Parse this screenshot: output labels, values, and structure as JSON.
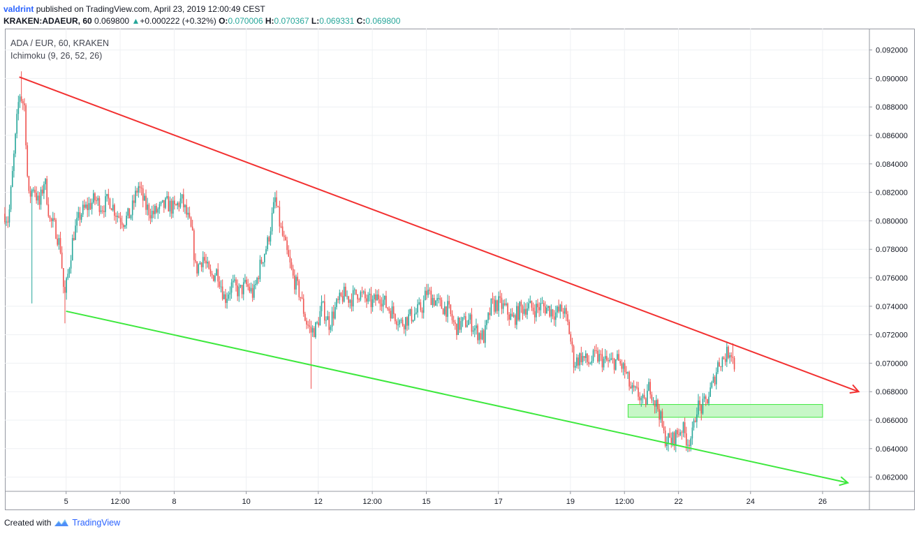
{
  "header": {
    "author": "valdrint",
    "published_text": "published on TradingView.com, April 23, 2019 12:00:49 CEST"
  },
  "ticker": {
    "symbol": "KRAKEN:ADAEUR, 60",
    "last": "0.069800",
    "change_arrow": "▲",
    "change": "+0.000222 (+0.32%)",
    "open_label": "O:",
    "open": "0.070006",
    "high_label": "H:",
    "high": "0.070367",
    "low_label": "L:",
    "low": "0.069331",
    "close_label": "C:",
    "close": "0.069800"
  },
  "legend": {
    "pair": "ADA / EUR, 60, KRAKEN",
    "indicator": "Ichimoku (9, 26, 52, 26)"
  },
  "footer": {
    "created_with": "Created with",
    "brand": "TradingView"
  },
  "colors": {
    "up": "#26a69a",
    "down": "#ef5350",
    "upper_trendline": "#f23030",
    "lower_trendline": "#3de83d",
    "support_zone_fill": "#b9f5b9",
    "support_zone_border": "#3de83d",
    "grid": "#eef0f3"
  },
  "chart_data": {
    "type": "candlestick",
    "y_axis": {
      "range": [
        0.061,
        0.0935
      ],
      "ticks": [
        "0.092000",
        "0.090000",
        "0.088000",
        "0.086000",
        "0.084000",
        "0.082000",
        "0.080000",
        "0.078000",
        "0.076000",
        "0.074000",
        "0.072000",
        "0.070000",
        "0.068000",
        "0.066000",
        "0.064000",
        "0.062000"
      ],
      "position": "right"
    },
    "x_axis": {
      "range_days": [
        3.3,
        27.3
      ],
      "ticks": [
        {
          "label": "5",
          "day": 5.0
        },
        {
          "label": "12:00",
          "day": 6.5
        },
        {
          "label": "8",
          "day": 8.0
        },
        {
          "label": "10",
          "day": 10.0
        },
        {
          "label": "12",
          "day": 12.0
        },
        {
          "label": "12:00",
          "day": 13.5
        },
        {
          "label": "15",
          "day": 15.0
        },
        {
          "label": "17",
          "day": 17.0
        },
        {
          "label": "19",
          "day": 19.0
        },
        {
          "label": "12:00",
          "day": 20.5
        },
        {
          "label": "22",
          "day": 22.0
        },
        {
          "label": "24",
          "day": 24.0
        },
        {
          "label": "26",
          "day": 26.0
        }
      ]
    },
    "grid": true,
    "price_path": [
      [
        3.3,
        0.0805
      ],
      [
        3.4,
        0.08
      ],
      [
        3.55,
        0.0845
      ],
      [
        3.7,
        0.089
      ],
      [
        3.85,
        0.088
      ],
      [
        3.95,
        0.0815
      ],
      [
        4.1,
        0.0825
      ],
      [
        4.25,
        0.081
      ],
      [
        4.4,
        0.083
      ],
      [
        4.55,
        0.08
      ],
      [
        4.7,
        0.0795
      ],
      [
        4.85,
        0.078
      ],
      [
        4.95,
        0.0745
      ],
      [
        5.05,
        0.0762
      ],
      [
        5.2,
        0.079
      ],
      [
        5.4,
        0.0805
      ],
      [
        5.6,
        0.081
      ],
      [
        5.8,
        0.0815
      ],
      [
        6.0,
        0.081
      ],
      [
        6.2,
        0.0815
      ],
      [
        6.4,
        0.0805
      ],
      [
        6.6,
        0.08
      ],
      [
        6.8,
        0.0805
      ],
      [
        7.0,
        0.0825
      ],
      [
        7.2,
        0.081
      ],
      [
        7.4,
        0.0805
      ],
      [
        7.6,
        0.0808
      ],
      [
        7.8,
        0.0812
      ],
      [
        8.0,
        0.0808
      ],
      [
        8.2,
        0.0815
      ],
      [
        8.4,
        0.08
      ],
      [
        8.5,
        0.079
      ],
      [
        8.6,
        0.0765
      ],
      [
        8.8,
        0.0775
      ],
      [
        9.0,
        0.076
      ],
      [
        9.2,
        0.0765
      ],
      [
        9.4,
        0.0745
      ],
      [
        9.6,
        0.0755
      ],
      [
        9.8,
        0.075
      ],
      [
        10.0,
        0.0755
      ],
      [
        10.2,
        0.0748
      ],
      [
        10.4,
        0.077
      ],
      [
        10.6,
        0.0785
      ],
      [
        10.8,
        0.0815
      ],
      [
        10.95,
        0.0795
      ],
      [
        11.1,
        0.078
      ],
      [
        11.3,
        0.076
      ],
      [
        11.5,
        0.0748
      ],
      [
        11.65,
        0.073
      ],
      [
        11.8,
        0.0722
      ],
      [
        11.95,
        0.0725
      ],
      [
        12.1,
        0.074
      ],
      [
        12.3,
        0.0728
      ],
      [
        12.5,
        0.074
      ],
      [
        12.7,
        0.0748
      ],
      [
        12.9,
        0.0745
      ],
      [
        13.1,
        0.075
      ],
      [
        13.3,
        0.0745
      ],
      [
        13.5,
        0.0742
      ],
      [
        13.7,
        0.0748
      ],
      [
        13.9,
        0.074
      ],
      [
        14.1,
        0.0735
      ],
      [
        14.3,
        0.0728
      ],
      [
        14.5,
        0.0732
      ],
      [
        14.7,
        0.0735
      ],
      [
        14.9,
        0.074
      ],
      [
        15.0,
        0.075
      ],
      [
        15.2,
        0.0745
      ],
      [
        15.4,
        0.074
      ],
      [
        15.6,
        0.0738
      ],
      [
        15.8,
        0.0725
      ],
      [
        16.0,
        0.0728
      ],
      [
        16.2,
        0.073
      ],
      [
        16.4,
        0.0722
      ],
      [
        16.6,
        0.0718
      ],
      [
        16.8,
        0.074
      ],
      [
        17.0,
        0.0742
      ],
      [
        17.2,
        0.0738
      ],
      [
        17.4,
        0.073
      ],
      [
        17.6,
        0.0738
      ],
      [
        17.8,
        0.074
      ],
      [
        18.0,
        0.0738
      ],
      [
        18.2,
        0.074
      ],
      [
        18.4,
        0.0738
      ],
      [
        18.6,
        0.0735
      ],
      [
        18.8,
        0.0738
      ],
      [
        18.95,
        0.0725
      ],
      [
        19.1,
        0.07
      ],
      [
        19.3,
        0.0705
      ],
      [
        19.5,
        0.07
      ],
      [
        19.7,
        0.0705
      ],
      [
        19.9,
        0.0702
      ],
      [
        20.1,
        0.07
      ],
      [
        20.3,
        0.0702
      ],
      [
        20.5,
        0.0695
      ],
      [
        20.7,
        0.068
      ],
      [
        20.9,
        0.0678
      ],
      [
        21.05,
        0.067
      ],
      [
        21.2,
        0.0685
      ],
      [
        21.35,
        0.0672
      ],
      [
        21.45,
        0.0668
      ],
      [
        21.6,
        0.0648
      ],
      [
        21.8,
        0.0645
      ],
      [
        21.95,
        0.065
      ],
      [
        22.1,
        0.0655
      ],
      [
        22.25,
        0.0645
      ],
      [
        22.4,
        0.065
      ],
      [
        22.5,
        0.067
      ],
      [
        22.65,
        0.0668
      ],
      [
        22.8,
        0.0675
      ],
      [
        22.95,
        0.0685
      ],
      [
        23.1,
        0.07
      ],
      [
        23.3,
        0.0705
      ],
      [
        23.45,
        0.071
      ],
      [
        23.55,
        0.0698
      ]
    ],
    "wick_spikes": [
      {
        "day": 3.75,
        "high": 0.0905
      },
      {
        "day": 4.05,
        "low": 0.0742
      },
      {
        "day": 4.95,
        "low": 0.0728
      },
      {
        "day": 11.8,
        "low": 0.0682
      },
      {
        "day": 21.7,
        "low": 0.0638
      },
      {
        "day": 23.5,
        "high": 0.0714
      }
    ],
    "trendlines": [
      {
        "role": "upper",
        "start": [
          3.7,
          0.0901
        ],
        "end": [
          27.0,
          0.068
        ],
        "arrow": true
      },
      {
        "role": "lower",
        "start": [
          5.0,
          0.07365
        ],
        "end": [
          26.7,
          0.0616
        ],
        "arrow": true
      }
    ],
    "zones": [
      {
        "role": "support",
        "day_start": 20.6,
        "day_end": 26.0,
        "price_low": 0.0662,
        "price_high": 0.0671
      }
    ]
  }
}
